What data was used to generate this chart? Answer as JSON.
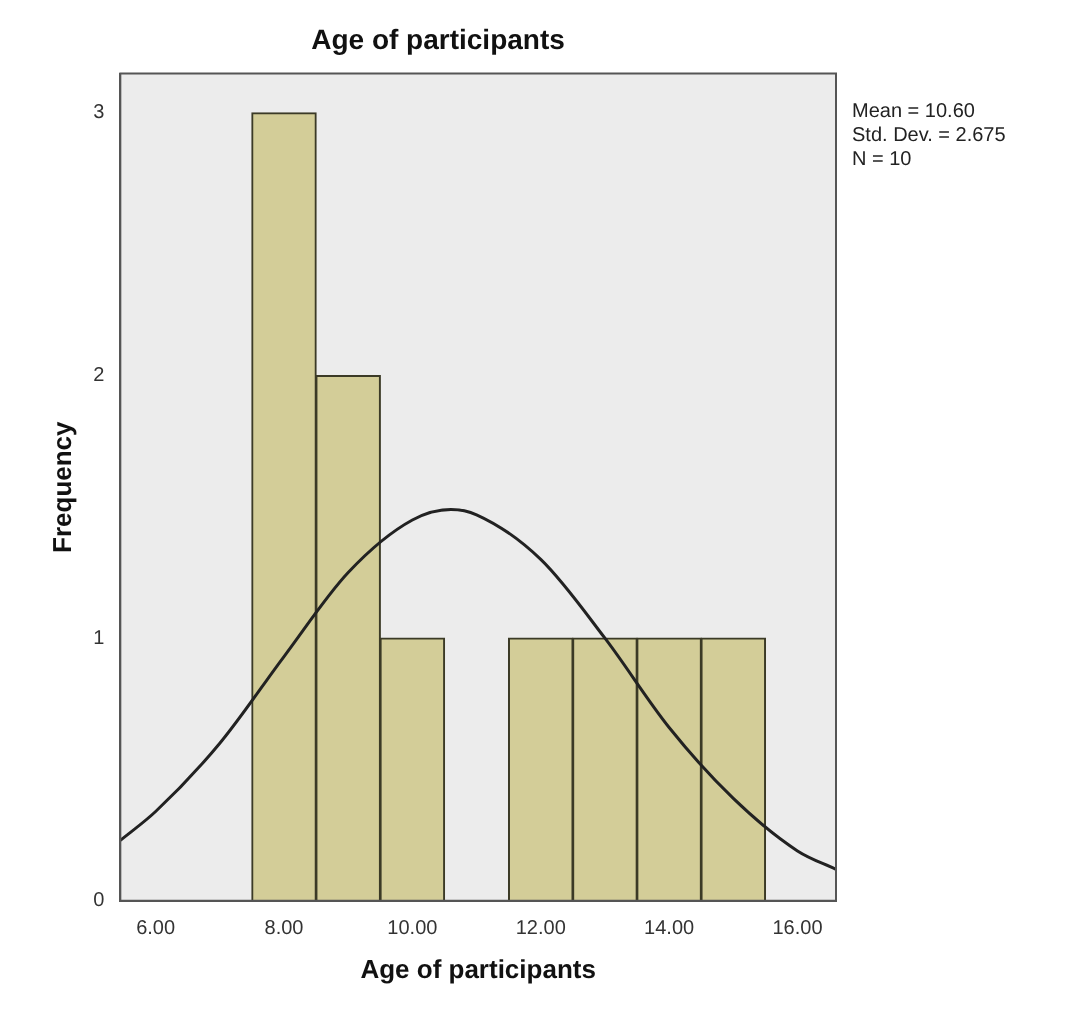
{
  "chart_data": {
    "type": "histogram",
    "title": "Age of participants",
    "xlabel": "Age of participants",
    "ylabel": "Frequency",
    "bins": [
      7.5,
      8.5,
      9.5,
      10.5,
      11.5,
      12.5,
      13.5,
      14.5,
      15.5
    ],
    "values": [
      3,
      2,
      1,
      0,
      1,
      1,
      1,
      1
    ],
    "color": "#d3cd98",
    "series": [
      {
        "type": "line",
        "color": "#222222",
        "x": [
          5.45,
          6,
          7,
          8,
          9,
          10,
          10.6,
          11,
          12,
          13,
          14,
          15,
          16,
          16.6
        ],
        "values": [
          0.23,
          0.34,
          0.6,
          0.93,
          1.25,
          1.45,
          1.49,
          1.47,
          1.3,
          1.0,
          0.66,
          0.39,
          0.19,
          0.12
        ]
      }
    ],
    "xlim": [
      5.45,
      16.6
    ],
    "xticks": [
      {
        "value": 6,
        "label": "6.00"
      },
      {
        "value": 8,
        "label": "8.00"
      },
      {
        "value": 10,
        "label": "10.00"
      },
      {
        "value": 12,
        "label": "12.00"
      },
      {
        "value": 14,
        "label": "14.00"
      },
      {
        "value": 16,
        "label": "16.00"
      }
    ],
    "ylim": [
      0,
      3.15
    ],
    "yticks": [
      0,
      1,
      2,
      3
    ],
    "grid": false,
    "legend": false,
    "marker": "none",
    "annotations": [
      "Mean = 10.60",
      "Std. Dev. = 2.675",
      "N = 10"
    ]
  }
}
